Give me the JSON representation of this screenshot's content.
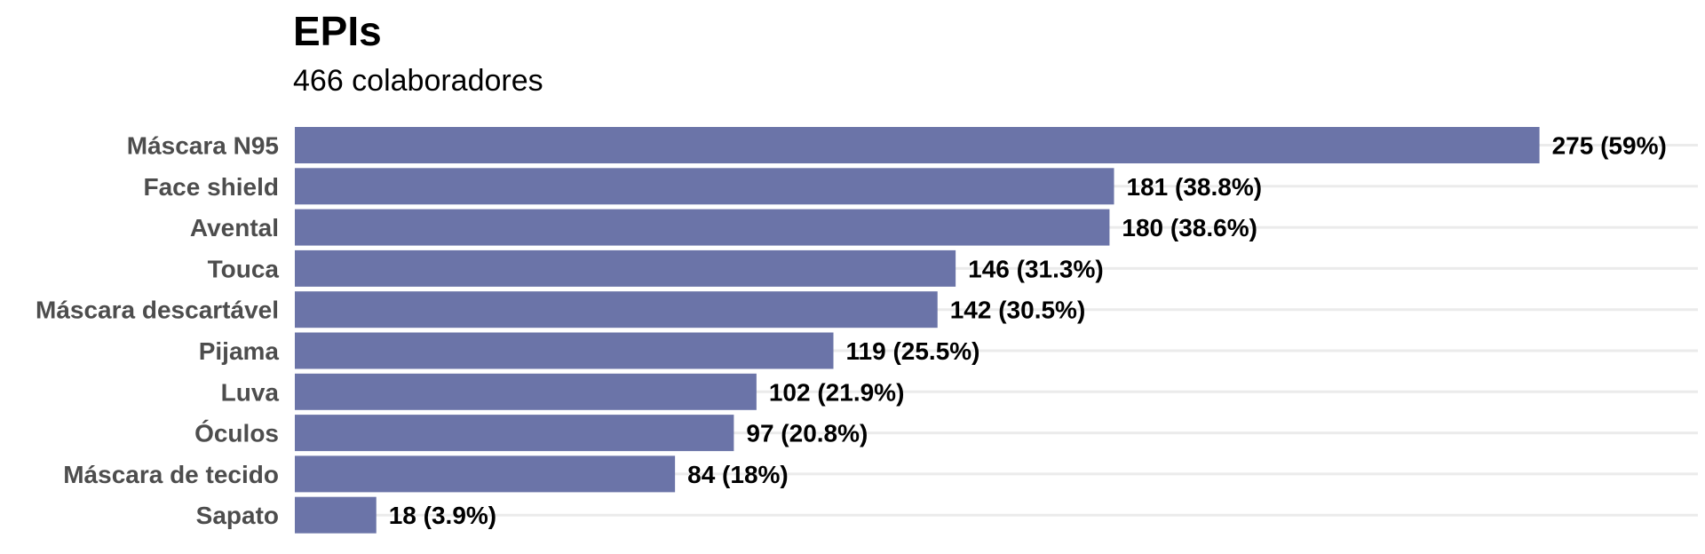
{
  "chart_data": {
    "type": "bar",
    "orientation": "horizontal",
    "title": "EPIs",
    "subtitle": "466 colaboradores",
    "categories": [
      "Máscara N95",
      "Face shield",
      "Avental",
      "Touca",
      "Máscara descartável",
      "Pijama",
      "Luva",
      "Óculos",
      "Máscara de tecido",
      "Sapato"
    ],
    "values": [
      275,
      181,
      180,
      146,
      142,
      119,
      102,
      97,
      84,
      18
    ],
    "value_labels": [
      "275 (59%)",
      "181 (38.8%)",
      "180 (38.6%)",
      "146 (31.3%)",
      "142 (30.5%)",
      "119 (25.5%)",
      "102 (21.9%)",
      "97 (20.8%)",
      "84 (18%)",
      "18 (3.9%)"
    ],
    "xlim": [
      0,
      310
    ],
    "grid": true,
    "bar_color": "#6b74a8"
  }
}
